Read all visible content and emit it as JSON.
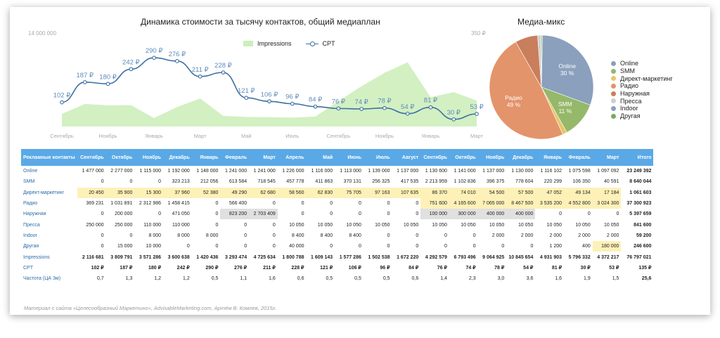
{
  "line_chart": {
    "title": "Динамика стоимости за тысячу контактов, общий медиаплан",
    "y_left_max": "14 000 000",
    "y_right_max": "350 ₽",
    "legend_impressions": "Impressions",
    "legend_cpt": "CPT",
    "x_ticks": [
      "Сентябрь",
      "Ноябрь",
      "Январь",
      "Март",
      "Май",
      "Июль",
      "Сентябрь",
      "Ноябрь",
      "Январь",
      "Март"
    ],
    "colors": {
      "area": "#cdeebb",
      "line": "#3d6fa3",
      "label": "#5f8bbd"
    }
  },
  "chart_data": [
    {
      "type": "line",
      "title": "Динамика стоимости за тысячу контактов, общий медиаплан",
      "categories": [
        "Сентябрь",
        "Октябрь",
        "Ноябрь",
        "Декабрь",
        "Январь",
        "Февраль",
        "Март",
        "Апрель",
        "Май",
        "Июнь",
        "Июль",
        "Август",
        "Сентябрь",
        "Октябрь",
        "Ноябрь",
        "Декабрь",
        "Январь",
        "Февраль",
        "Март"
      ],
      "series": [
        {
          "name": "Impressions",
          "axis": "left",
          "values": [
            2116681,
            3809791,
            3571286,
            3600638,
            1420436,
            3293474,
            4725634,
            1800788,
            1609143,
            1577286,
            1502538,
            1672220,
            4292579,
            6793496,
            9064925,
            10845654,
            4931903,
            5796332,
            4372217
          ]
        },
        {
          "name": "CPT",
          "axis": "right",
          "values": [
            102,
            187,
            180,
            242,
            290,
            276,
            211,
            228,
            121,
            106,
            96,
            84,
            76,
            74,
            78,
            54,
            81,
            30,
            53
          ]
        }
      ],
      "data_labels": [
        "102 ₽",
        "187 ₽",
        "180 ₽",
        "242 ₽",
        "290 ₽",
        "276 ₽",
        "211 ₽",
        "228 ₽",
        "121 ₽",
        "106 ₽",
        "96 ₽",
        "84 ₽",
        "76 ₽",
        "74 ₽",
        "78 ₽",
        "54 ₽",
        "81 ₽",
        "30 ₽",
        "53 ₽"
      ],
      "ylim_left": [
        0,
        14000000
      ],
      "ylim_right": [
        0,
        350
      ]
    },
    {
      "type": "pie",
      "title": "Медиа-микс",
      "categories": [
        "Online",
        "SMM",
        "Директ-маркетинг",
        "Радио",
        "Наружная",
        "Пресса",
        "Indoor",
        "Другая"
      ],
      "values": [
        23249392,
        8640044,
        1061603,
        37300923,
        5397659,
        841600,
        59200,
        246600
      ],
      "colors": [
        "#8aa0bd",
        "#96b86a",
        "#e8c66a",
        "#e3946a",
        "#c97e5c",
        "#cfcfcf",
        "#8aa0bd",
        "#7da85a"
      ],
      "slice_labels": [
        {
          "name": "Online",
          "pct": "30 %"
        },
        {
          "name": "SMM",
          "pct": "11 %"
        },
        {
          "name": "Радио",
          "pct": "49 %"
        }
      ],
      "legend_position": "right"
    }
  ],
  "pie_chart": {
    "title": "Медиа-микс"
  },
  "table": {
    "header_label": "Рекламные контакты",
    "months": [
      "Сентябрь",
      "Октябрь",
      "Ноябрь",
      "Декабрь",
      "Январь",
      "Февраль",
      "Март",
      "Апрель",
      "Май",
      "Июнь",
      "Июль",
      "Август",
      "Сентябрь",
      "Октябрь",
      "Ноябрь",
      "Декабрь",
      "Январь",
      "Февраль",
      "Март"
    ],
    "total_label": "Итого",
    "rows": [
      {
        "label": "Online",
        "cells": [
          "1 477 000",
          "2 277 000",
          "1 115 000",
          "1 192 000",
          "1 148 000",
          "1 241 000",
          "1 241 000",
          "1 226 000",
          "1 116 000",
          "1 113 000",
          "1 139 000",
          "1 137 000",
          "1 130 600",
          "1 141 000",
          "1 137 000",
          "1 130 000",
          "1 116 102",
          "1 075 598",
          "1 097 092"
        ],
        "total": "23 249 392"
      },
      {
        "label": "SMM",
        "cells": [
          "0",
          "0",
          "0",
          "323 213",
          "212 056",
          "613 584",
          "718 545",
          "457 778",
          "411 863",
          "370 131",
          "256 325",
          "417 535",
          "2 213 959",
          "1 102 836",
          "396 375",
          "778 604",
          "220 299",
          "106 350",
          "40 591"
        ],
        "total": "8 640 044"
      },
      {
        "label": "Директ-маркетинг",
        "cells": [
          "20 450",
          "35 900",
          "15 300",
          "37 960",
          "52 380",
          "49 290",
          "62 680",
          "58 560",
          "62 830",
          "75 705",
          "97 163",
          "107 635",
          "86 370",
          "74 010",
          "54 500",
          "57 500",
          "47 052",
          "49 134",
          "17 184"
        ],
        "total": "1 061 603"
      },
      {
        "label": "Радио",
        "cells": [
          "369 231",
          "1 031 891",
          "2 312 986",
          "1 458 415",
          "0",
          "566 400",
          "0",
          "0",
          "0",
          "0",
          "0",
          "0",
          "751 600",
          "4 165 600",
          "7 065 000",
          "8 467 500",
          "3 535 200",
          "4 552 800",
          "3 024 300"
        ],
        "total": "37 300 923"
      },
      {
        "label": "Наружная",
        "cells": [
          "0",
          "200 000",
          "0",
          "471 050",
          "0",
          "823 200",
          "2 703 409",
          "0",
          "0",
          "0",
          "0",
          "0",
          "100 000",
          "300 000",
          "400 000",
          "400 000",
          "0",
          "0",
          "0"
        ],
        "total": "5 397 659"
      },
      {
        "label": "Пресса",
        "cells": [
          "250 000",
          "250 000",
          "110 000",
          "110 000",
          "0",
          "0",
          "0",
          "10 050",
          "10 050",
          "10 050",
          "10 050",
          "10 050",
          "10 050",
          "10 050",
          "10 050",
          "10 050",
          "10 050",
          "10 050",
          "10 050"
        ],
        "total": "841 600"
      },
      {
        "label": "Indoor",
        "cells": [
          "0",
          "0",
          "8 000",
          "8 000",
          "8 000",
          "0",
          "0",
          "8 400",
          "8 400",
          "8 400",
          "0",
          "0",
          "0",
          "0",
          "2 000",
          "2 000",
          "2 000",
          "2 000",
          "2 000"
        ],
        "total": "59 200"
      },
      {
        "label": "Другая",
        "cells": [
          "0",
          "15 000",
          "10 000",
          "0",
          "0",
          "0",
          "0",
          "40 000",
          "0",
          "0",
          "0",
          "0",
          "0",
          "0",
          "0",
          "0",
          "1 200",
          "400",
          "180 000"
        ],
        "total": "246 600"
      },
      {
        "label": "Impressions",
        "cells": [
          "2 116 681",
          "3 809 791",
          "3 571 286",
          "3 600 638",
          "1 420 436",
          "3 293 474",
          "4 725 634",
          "1 800 788",
          "1 609 143",
          "1 577 286",
          "1 502 538",
          "1 672 220",
          "4 292 579",
          "6 793 496",
          "9 064 925",
          "10 845 654",
          "4 931 903",
          "5 796 332",
          "4 372 217"
        ],
        "total": "76 797 021"
      },
      {
        "label": "CPT",
        "cells": [
          "102 ₽",
          "187 ₽",
          "180 ₽",
          "242 ₽",
          "290 ₽",
          "276 ₽",
          "211 ₽",
          "228 ₽",
          "121 ₽",
          "106 ₽",
          "96 ₽",
          "84 ₽",
          "76 ₽",
          "74 ₽",
          "78 ₽",
          "54 ₽",
          "81 ₽",
          "30 ₽",
          "53 ₽"
        ],
        "total": "135 ₽"
      },
      {
        "label": "Частота (ЦА 3м)",
        "cells": [
          "0,7",
          "1,3",
          "1,2",
          "1,2",
          "0,5",
          "1,1",
          "1,6",
          "0,6",
          "0,5",
          "0,5",
          "0,5",
          "0,6",
          "1,4",
          "2,3",
          "3,0",
          "3,6",
          "1,6",
          "1,9",
          "1,5"
        ],
        "total": "25,6"
      }
    ],
    "highlight_colors": {
      "yellow": "#fdf1b8",
      "gray": "#e0e0e0"
    }
  },
  "footer": "Материал с сайта «Целесообразный Маркетинг», AdvisableMarketing.com, Артём В. Комлев, 2015г."
}
